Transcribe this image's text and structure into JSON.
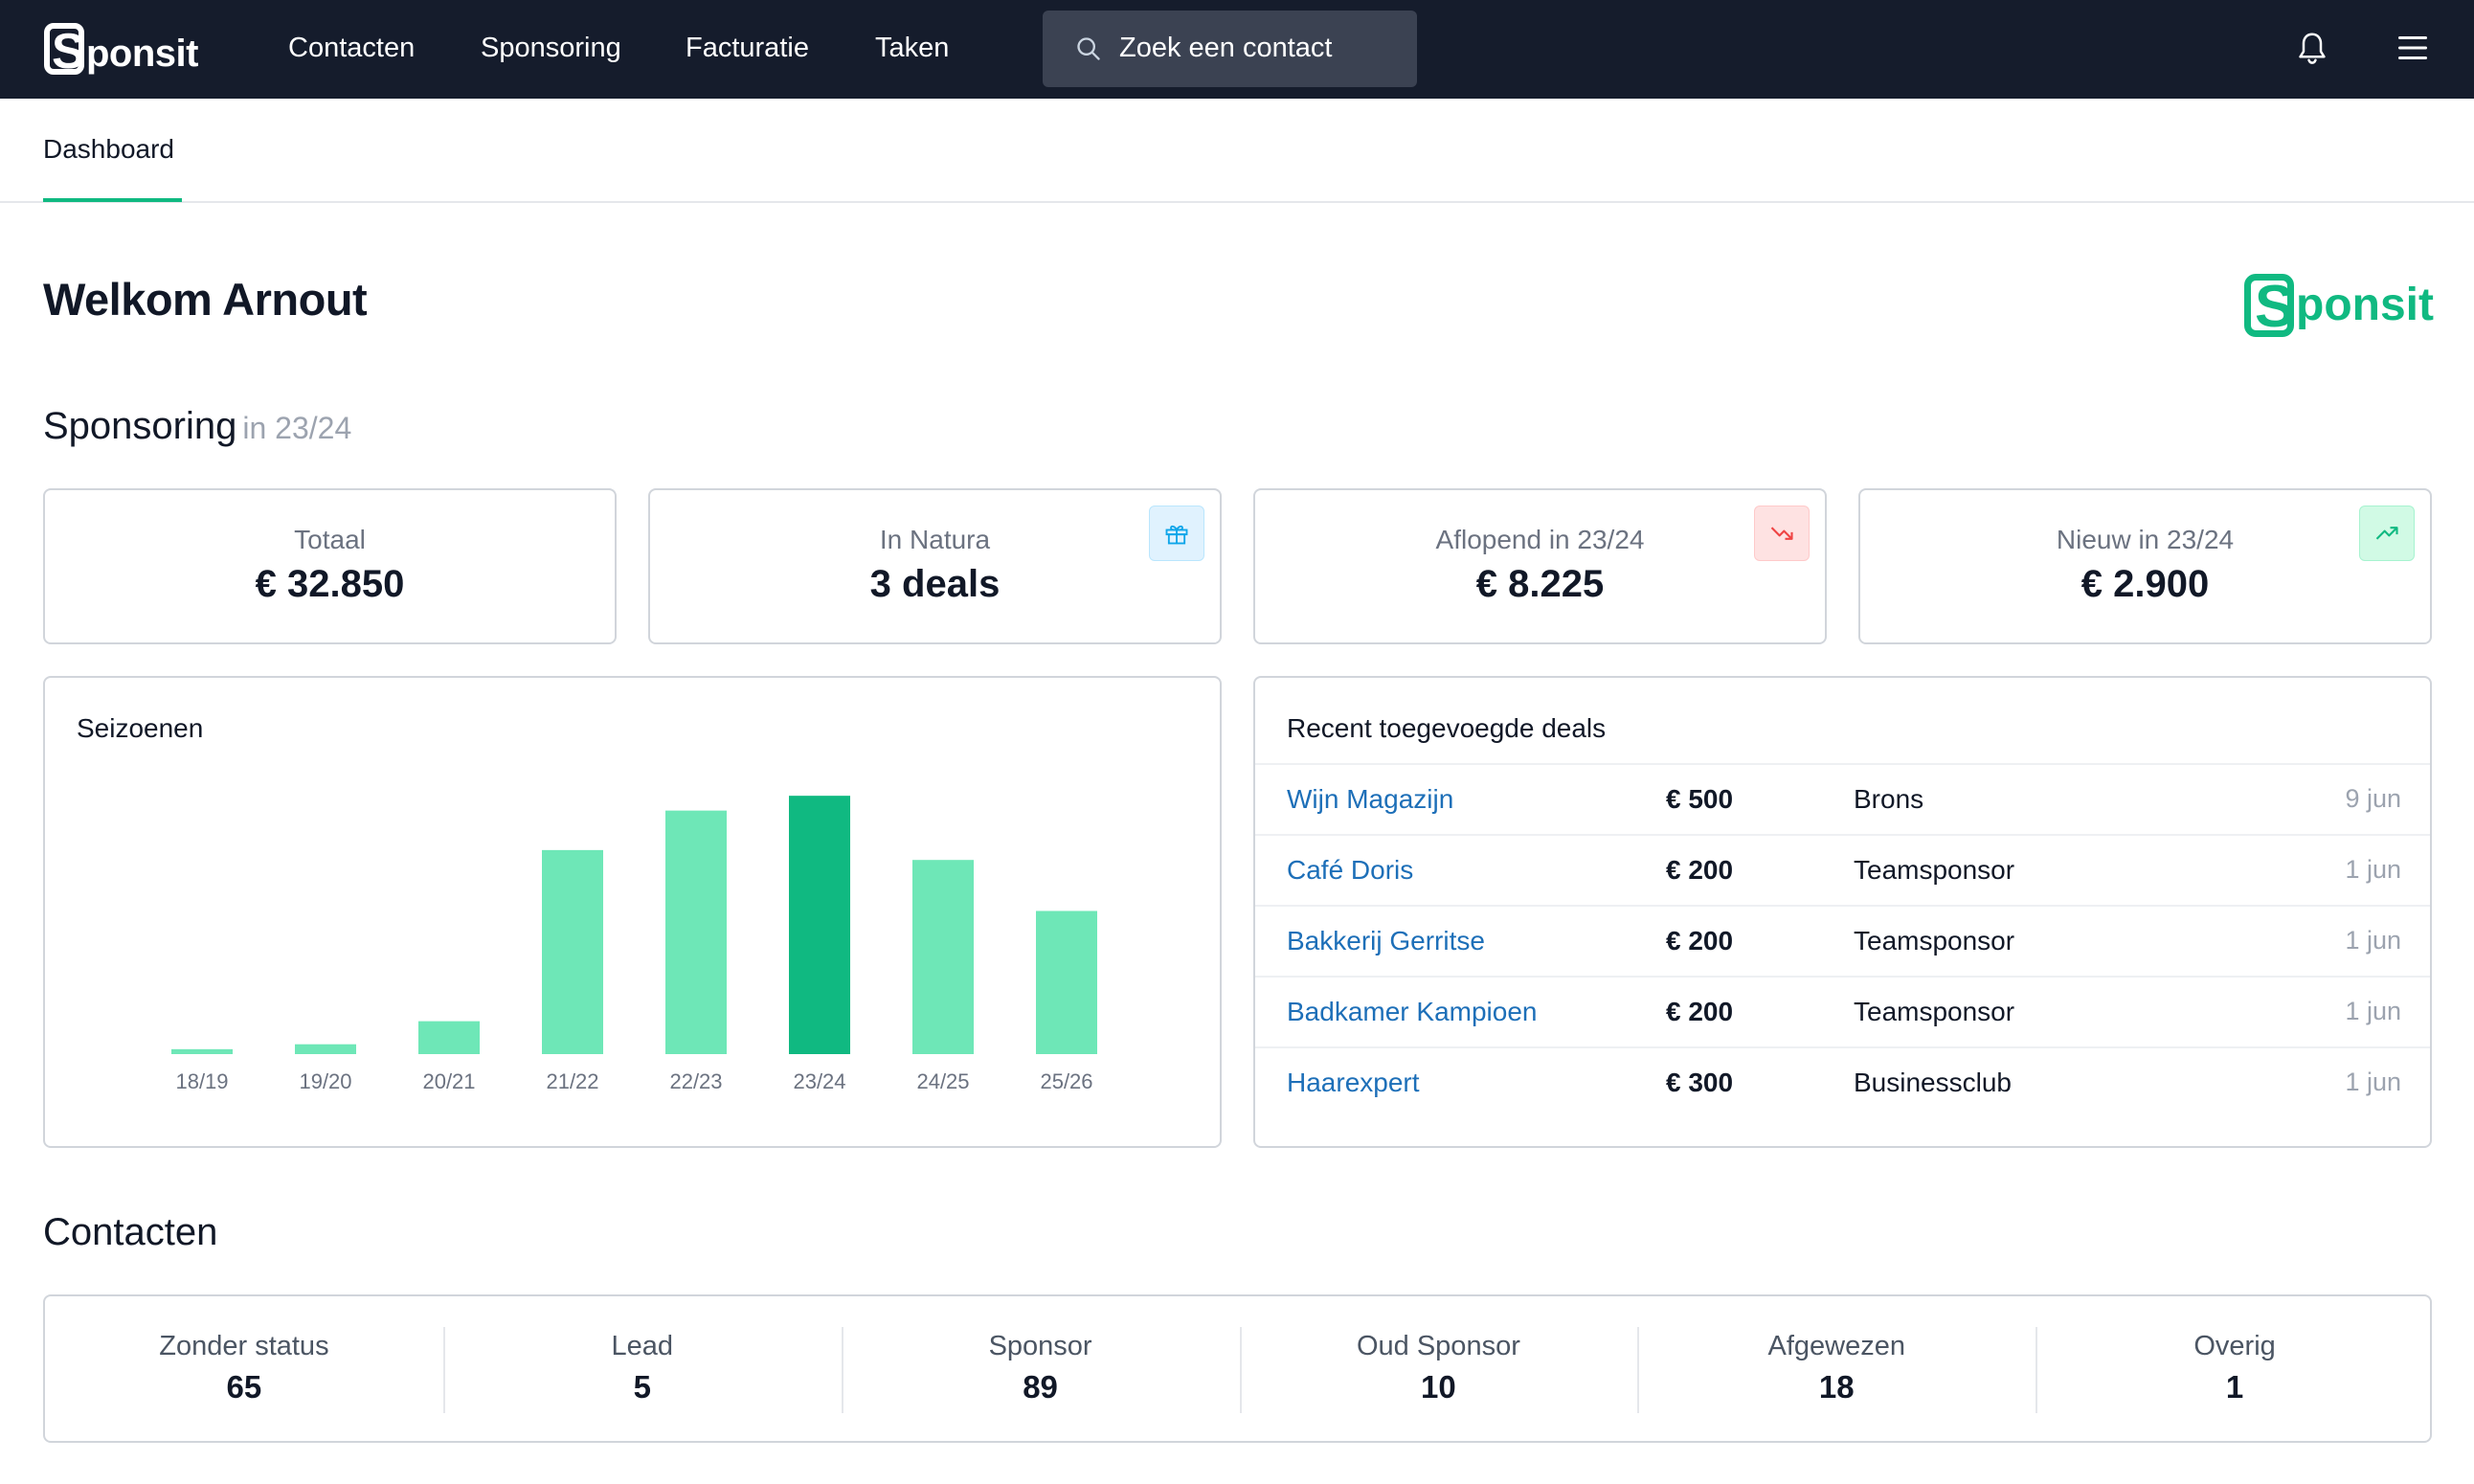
{
  "nav": {
    "brand": "ponsit",
    "brand_initial": "S",
    "links": [
      "Contacten",
      "Sponsoring",
      "Facturatie",
      "Taken"
    ],
    "search_placeholder": "Zoek een contact"
  },
  "subnav": {
    "active_tab": "Dashboard"
  },
  "welcome": "Welkom Arnout",
  "brand_logo": {
    "initial": "S",
    "text": "ponsit"
  },
  "sponsoring": {
    "title": "Sponsoring",
    "season": "in 23/24",
    "stats": [
      {
        "label": "Totaal",
        "value": "€ 32.850",
        "icon": null
      },
      {
        "label": "In Natura",
        "value": "3 deals",
        "icon": "gift-icon"
      },
      {
        "label": "Aflopend in 23/24",
        "value": "€ 8.225",
        "icon": "trending-down-icon"
      },
      {
        "label": "Nieuw in 23/24",
        "value": "€ 2.900",
        "icon": "trending-up-icon"
      }
    ]
  },
  "seasons_chart": {
    "title": "Seizoenen"
  },
  "chart_data": {
    "type": "bar",
    "title": "Seizoenen",
    "categories": [
      "18/19",
      "19/20",
      "20/21",
      "21/22",
      "22/23",
      "23/24",
      "24/25",
      "25/26"
    ],
    "values": [
      1.5,
      3,
      10,
      62,
      74,
      78.5,
      59,
      43.5
    ],
    "highlight_category": "23/24",
    "colors": {
      "bar": "#6ee7b7",
      "highlight": "#10b981"
    },
    "ylim": [
      0,
      80
    ],
    "grid": false
  },
  "recent_deals": {
    "title": "Recent toegevoegde deals",
    "rows": [
      {
        "name": "Wijn Magazijn",
        "amount": "€ 500",
        "type": "Brons",
        "date": "9 jun"
      },
      {
        "name": "Café Doris",
        "amount": "€ 200",
        "type": "Teamsponsor",
        "date": "1 jun"
      },
      {
        "name": "Bakkerij Gerritse",
        "amount": "€ 200",
        "type": "Teamsponsor",
        "date": "1 jun"
      },
      {
        "name": "Badkamer Kampioen",
        "amount": "€ 200",
        "type": "Teamsponsor",
        "date": "1 jun"
      },
      {
        "name": "Haarexpert",
        "amount": "€ 300",
        "type": "Businessclub",
        "date": "1 jun"
      }
    ]
  },
  "contacts": {
    "title": "Contacten",
    "stats": [
      {
        "label": "Zonder status",
        "value": "65"
      },
      {
        "label": "Lead",
        "value": "5"
      },
      {
        "label": "Sponsor",
        "value": "89"
      },
      {
        "label": "Oud Sponsor",
        "value": "10"
      },
      {
        "label": "Afgewezen",
        "value": "18"
      },
      {
        "label": "Overig",
        "value": "1"
      }
    ]
  },
  "colors": {
    "accent": "#10b981",
    "nav_bg": "#151c2c",
    "link": "#1d6fb8"
  }
}
